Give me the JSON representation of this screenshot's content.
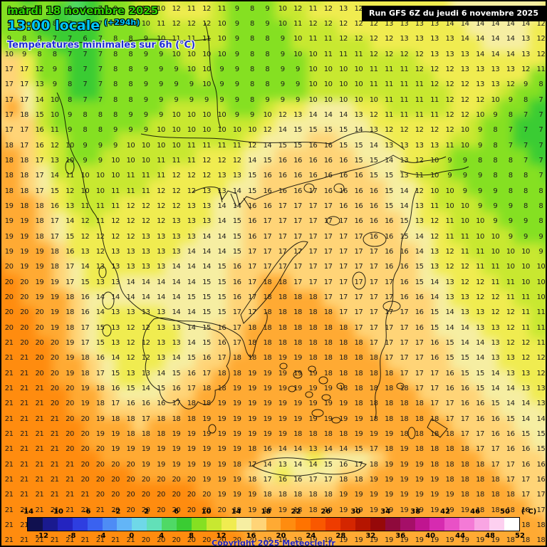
{
  "header": {
    "date_line": "mardi 18 novembre 2025",
    "time_line": "13:00 locale",
    "forecast_offset": "(+294h)",
    "subtitle": "Températures minimales sur 6h (°C)",
    "run_info": "Run GFS 6Z du jeudi 6 novembre 2025"
  },
  "colorbar": {
    "labels_top": [
      "-14",
      "-10",
      "-6",
      "-2",
      "2",
      "6",
      "10",
      "14",
      "18",
      "22",
      "26",
      "30",
      "34",
      "38",
      "42",
      "46",
      "50"
    ],
    "labels_bottom": [
      "-12",
      "-8",
      "-4",
      "0",
      "4",
      "8",
      "12",
      "16",
      "20",
      "24",
      "28",
      "32",
      "36",
      "40",
      "44",
      "48",
      "52"
    ],
    "unit": "(°C)",
    "range_min": -14,
    "range_max": 52,
    "copyright": "Copyright 2025 Meteociel.fr"
  },
  "palette": {
    "min": -14,
    "step": 2,
    "colors": [
      "#10104f",
      "#1a1a8f",
      "#2424c0",
      "#2e3ee0",
      "#3a62f0",
      "#4e8cf5",
      "#63b5f7",
      "#6fd8e8",
      "#62e0b8",
      "#4fd966",
      "#3acc33",
      "#85e022",
      "#c8e830",
      "#f0ec50",
      "#f6eea2",
      "#ffd477",
      "#ffaa33",
      "#ff8c0f",
      "#ff7300",
      "#f95800",
      "#ee3c00",
      "#d42600",
      "#b51500",
      "#960909",
      "#8f0a3c",
      "#a50f68",
      "#c01590",
      "#d62bb0",
      "#e951c6",
      "#f47ad6",
      "#f9a5e3",
      "#fdd0f0",
      "#ffffff"
    ]
  },
  "map_grid": {
    "cols": 36,
    "rows": [
      "8 9 7 9 9 4 7 9 8 11 10 12 11 12 11 9 8 9 10 12 11 12 13 12 12 12 13 13 13 14 14 14 14 14 14 12",
      "9 9 8 8 7 5 7 8 9 10 11 12 12 12 10 9 8 9 10 11 12 12 12 12 12 13 13 13 13 14 14 14 14 14 14 12",
      "9 8 8 7 7 6 7 8 8 9 10 11 11 11 10 9 8 8 9 10 11 11 12 12 12 12 13 13 13 13 14 14 14 14 13 12",
      "10 9 8 8 7 7 7 8 8 9 9 10 10 10 10 9 8 8 9 10 10 11 11 11 12 12 12 12 13 13 13 14 14 14 13 12",
      "17 17 12 9 8 7 7 8 8 9 9 9 10 10 9 9 8 8 9 9 10 10 10 10 11 11 11 12 12 12 13 13 13 13 12 11",
      "17 17 13 9 8 7 7 8 8 9 9 9 9 10 9 9 8 8 9 9 10 10 10 10 11 11 11 11 12 12 12 13 13 12 9 8",
      "17 17 14 10 8 7 7 8 8 9 9 9 9 9 9 9 8 9 9 9 10 10 10 10 10 11 11 11 11 12 12 12 10 9 8 7",
      "17 18 15 10 9 8 8 8 9 9 9 10 10 10 10 9 9 10 12 13 14 14 14 13 12 11 11 11 11 12 12 10 9 8 7 7",
      "17 17 16 11 9 8 8 9 9 9 10 10 10 10 10 10 10 12 14 15 15 15 15 14 13 12 12 12 12 12 10 9 8 7 7 7",
      "18 17 16 12 10 9 9 9 10 10 10 10 11 11 11 11 12 14 15 15 16 16 15 15 14 13 13 13 13 11 10 9 8 7 7 7",
      "18 18 17 13 10 9 9 10 10 10 11 11 11 12 12 12 14 15 16 16 16 16 16 15 15 14 13 12 10 9 9 8 8 8 7 7",
      "18 18 17 14 11 10 10 10 11 11 11 12 12 12 13 13 15 16 16 16 16 16 16 16 15 15 13 11 10 9 9 9 8 8 8 7",
      "18 18 17 15 12 10 10 11 11 11 12 12 12 13 13 14 15 16 16 16 17 16 16 16 16 15 14 12 10 10 9 9 9 8 8 8",
      "19 18 18 16 13 11 11 11 12 12 12 12 13 13 14 14 16 16 17 17 17 17 16 16 16 15 14 13 11 10 10 9 9 9 8 8",
      "19 19 18 17 14 12 11 12 12 12 12 13 13 13 14 15 16 17 17 17 17 17 17 16 16 16 15 13 12 11 10 10 9 9 9 8",
      "19 19 18 17 15 12 12 12 12 13 13 13 13 14 14 15 16 17 17 17 17 17 17 17 16 16 15 14 12 11 11 10 10 9 9 9",
      "19 19 19 18 16 13 12 13 13 13 13 13 14 14 14 15 17 17 17 17 17 17 17 17 17 16 16 14 13 12 11 11 10 10 10 9",
      "20 19 19 18 17 14 13 13 13 13 13 14 14 14 15 16 17 17 17 17 17 17 17 17 17 16 16 15 13 12 12 11 11 10 10 10",
      "20 20 19 19 17 15 13 13 14 14 14 14 14 15 15 16 17 18 18 17 17 17 17 17 17 17 16 15 14 13 12 12 11 11 10 10",
      "20 20 19 19 18 16 14 14 14 14 14 14 15 15 15 16 17 18 18 18 18 17 17 17 17 17 16 16 14 13 13 12 12 11 11 10",
      "20 20 20 19 18 16 14 13 13 13 13 14 14 15 15 17 17 18 18 18 18 18 17 17 17 17 17 16 15 14 13 13 12 12 11 11",
      "20 20 20 19 18 17 15 13 12 12 13 13 14 15 16 17 18 18 18 18 18 18 18 17 17 17 17 16 15 14 14 13 13 12 11 11",
      "21 20 20 20 19 17 15 13 12 12 13 13 14 15 16 17 18 18 18 18 18 18 18 18 17 17 17 17 16 15 14 14 13 12 12 11",
      "21 21 20 20 19 18 16 14 12 12 13 14 15 16 17 18 18 18 19 19 18 18 18 18 18 17 17 17 16 15 15 14 13 13 12 12",
      "21 21 20 20 19 18 17 15 13 13 14 15 16 17 18 18 19 19 19 19 19 18 18 18 18 18 17 17 17 16 15 15 14 13 13 12",
      "21 21 21 20 20 19 18 16 15 14 15 16 17 18 18 19 19 19 19 19 19 19 18 18 18 18 18 17 17 16 16 15 14 14 13 13",
      "21 21 21 20 20 19 18 17 16 16 16 17 18 18 19 19 19 19 19 19 19 19 19 18 18 18 18 18 17 17 16 16 15 14 14 13",
      "21 21 21 21 20 20 19 18 18 17 18 18 18 19 19 19 19 19 19 19 19 19 19 19 18 18 18 18 18 17 17 16 16 15 14 14",
      "21 21 21 21 20 20 19 19 18 18 18 19 19 19 19 19 19 19 19 18 18 18 18 19 19 19 18 18 18 18 17 17 16 16 15 15",
      "21 21 21 21 20 20 20 19 19 19 19 19 19 19 19 19 18 16 14 14 13 14 14 15 17 18 19 18 18 18 18 17 17 16 16 15",
      "21 21 21 21 21 20 20 20 20 19 19 19 19 19 19 18 17 14 13 14 14 15 16 17 18 19 19 19 18 18 18 18 17 17 16 16",
      "21 21 21 21 21 20 20 20 20 20 20 20 20 19 19 19 18 17 16 16 17 17 18 18 19 19 19 19 19 18 18 18 18 17 17 16",
      "21 21 21 21 21 21 20 20 20 20 20 20 20 20 19 19 19 18 18 18 18 18 19 19 19 19 19 19 19 19 18 18 18 18 17 17",
      "21 21 21 21 21 21 21 20 20 20 20 20 20 20 20 19 19 19 19 18 18 19 19 19 19 19 19 19 19 19 19 18 18 18 18 17",
      "21 21 21 21 21 21 21 21 20 20 20 20 20 20 20 20 19 19 19 19 19 19 19 19 19 19 19 19 19 19 19 19 18 18 18 18",
      "21 21 21 21 21 21 21 21 21 20 20 20 20 20 20 20 20 19 19 19 19 19 19 19 19 19 19 19 19 19 19 19 19 18 18 18"
    ]
  }
}
